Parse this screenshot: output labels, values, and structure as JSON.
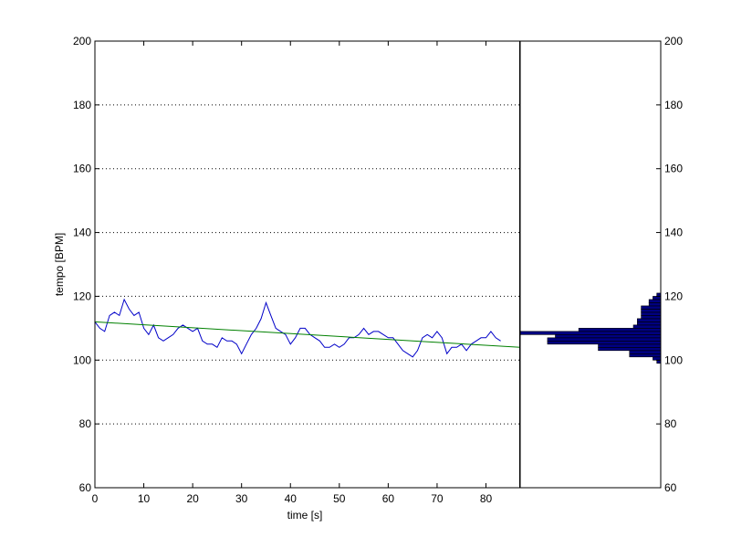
{
  "chart_data": [
    {
      "type": "line",
      "xlabel": "time [s]",
      "ylabel": "tempo [BPM]",
      "xlim": [
        0,
        87
      ],
      "ylim": [
        60,
        200
      ],
      "x_ticks": [
        "0",
        "10",
        "20",
        "30",
        "40",
        "50",
        "60",
        "70",
        "80"
      ],
      "y_ticks": [
        "60",
        "80",
        "100",
        "120",
        "140",
        "160",
        "180",
        "200"
      ],
      "grid": "horizontal dotted",
      "colors": {
        "tempo": "#0000c8",
        "trend": "#008000"
      },
      "series": [
        {
          "key": "tempo",
          "x": [
            0,
            1,
            2,
            3,
            4,
            5,
            6,
            7,
            8,
            9,
            10,
            11,
            12,
            13,
            14,
            15,
            16,
            17,
            18,
            19,
            20,
            21,
            22,
            23,
            24,
            25,
            26,
            27,
            28,
            29,
            30,
            31,
            32,
            33,
            34,
            35,
            36,
            37,
            38,
            39,
            40,
            41,
            42,
            43,
            44,
            45,
            46,
            47,
            48,
            49,
            50,
            51,
            52,
            53,
            54,
            55,
            56,
            57,
            58,
            59,
            60,
            61,
            62,
            63,
            64,
            65,
            66,
            67,
            68,
            69,
            70,
            71,
            72,
            73,
            74,
            75,
            76,
            77,
            78,
            79,
            80,
            81,
            82,
            83
          ],
          "values": [
            112,
            110,
            109,
            114,
            115,
            114,
            119,
            116,
            114,
            115,
            110,
            108,
            111,
            107,
            106,
            107,
            108,
            110,
            111,
            110,
            109,
            110,
            106,
            105,
            105,
            104,
            107,
            106,
            106,
            105,
            102,
            105,
            108,
            110,
            113,
            118,
            114,
            110,
            109,
            108,
            105,
            107,
            110,
            110,
            108,
            107,
            106,
            104,
            104,
            105,
            104,
            105,
            107,
            107,
            108,
            110,
            108,
            109,
            109,
            108,
            107,
            107,
            105,
            103,
            102,
            101,
            103,
            107,
            108,
            107,
            109,
            107,
            102,
            104,
            104,
            105,
            103,
            105,
            106,
            107,
            107,
            109,
            107,
            106
          ]
        },
        {
          "key": "trend",
          "x": [
            0,
            87
          ],
          "values": [
            112,
            104
          ]
        }
      ]
    },
    {
      "type": "bar",
      "orientation": "horizontal",
      "ylim": [
        60,
        200
      ],
      "y_ticks": [
        "60",
        "80",
        "100",
        "120",
        "140",
        "160",
        "180",
        "200"
      ],
      "colors": {
        "fill": "#000080"
      },
      "bins": [
        {
          "y0": 99,
          "y1": 100,
          "value": 1
        },
        {
          "y0": 100,
          "y1": 101,
          "value": 2
        },
        {
          "y0": 101,
          "y1": 102,
          "value": 8
        },
        {
          "y0": 102,
          "y1": 103,
          "value": 8
        },
        {
          "y0": 103,
          "y1": 104,
          "value": 16
        },
        {
          "y0": 104,
          "y1": 105,
          "value": 16
        },
        {
          "y0": 105,
          "y1": 106,
          "value": 29
        },
        {
          "y0": 106,
          "y1": 107,
          "value": 29
        },
        {
          "y0": 107,
          "y1": 108,
          "value": 27
        },
        {
          "y0": 108,
          "y1": 109,
          "value": 36
        },
        {
          "y0": 109,
          "y1": 110,
          "value": 21
        },
        {
          "y0": 110,
          "y1": 111,
          "value": 7
        },
        {
          "y0": 111,
          "y1": 112,
          "value": 6
        },
        {
          "y0": 112,
          "y1": 113,
          "value": 6
        },
        {
          "y0": 113,
          "y1": 114,
          "value": 5
        },
        {
          "y0": 114,
          "y1": 115,
          "value": 5
        },
        {
          "y0": 115,
          "y1": 116,
          "value": 5
        },
        {
          "y0": 116,
          "y1": 117,
          "value": 5
        },
        {
          "y0": 117,
          "y1": 118,
          "value": 3
        },
        {
          "y0": 118,
          "y1": 119,
          "value": 3
        },
        {
          "y0": 119,
          "y1": 120,
          "value": 2
        },
        {
          "y0": 120,
          "y1": 121,
          "value": 1
        }
      ],
      "xlim": [
        0,
        36
      ]
    }
  ]
}
